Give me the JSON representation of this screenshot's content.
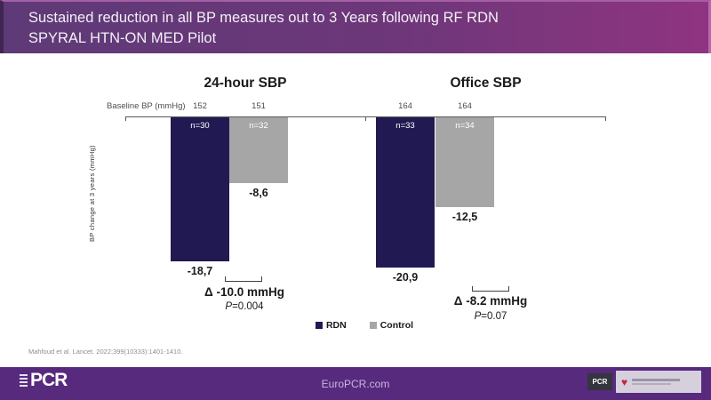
{
  "header": {
    "title_line1": "Sustained reduction in all BP measures out to 3 Years following RF RDN",
    "title_line2": "SPYRAL HTN-ON MED Pilot"
  },
  "chart_data": {
    "type": "bar",
    "ylabel": "BP change at 3 years (mmHg)",
    "baseline_row_label": "Baseline BP (mmHg)",
    "legend_position": "bottom-center",
    "grid": false,
    "series_colors": {
      "RDN": "#211a52",
      "Control": "#a6a6a6"
    },
    "panels": [
      {
        "title": "24-hour SBP",
        "categories": [
          "RDN",
          "Control"
        ],
        "baselines": [
          "152",
          "151"
        ],
        "n_labels": [
          "n=30",
          "n=32"
        ],
        "values": [
          -18.7,
          -8.6
        ],
        "value_labels": [
          "-18,7",
          "-8,6"
        ],
        "delta_label": "Δ -10.0 mmHg",
        "p_prefix": "P",
        "p_rest": "=0.004",
        "ylim": [
          -22,
          0
        ]
      },
      {
        "title": "Office SBP",
        "categories": [
          "RDN",
          "Control"
        ],
        "baselines": [
          "164",
          "164"
        ],
        "n_labels": [
          "n=33",
          "n=34"
        ],
        "values": [
          -20.9,
          -12.5
        ],
        "value_labels": [
          "-20,9",
          "-12,5"
        ],
        "delta_label": "Δ -8.2 mmHg",
        "p_prefix": "P",
        "p_rest": "=0.07",
        "ylim": [
          -23.5,
          0
        ]
      }
    ],
    "legend": [
      {
        "label": "RDN",
        "color": "#211a52"
      },
      {
        "label": "Control",
        "color": "#a6a6a6"
      }
    ]
  },
  "citation": "Mahfoud et al. Lancet. 2022;399(10333):1401-1410.",
  "footer": {
    "url": "EuroPCR.com",
    "pcr_logo_label": "PCR",
    "pcr_badge_label": "PCR",
    "partner_logo_icon": "heart-icon"
  }
}
